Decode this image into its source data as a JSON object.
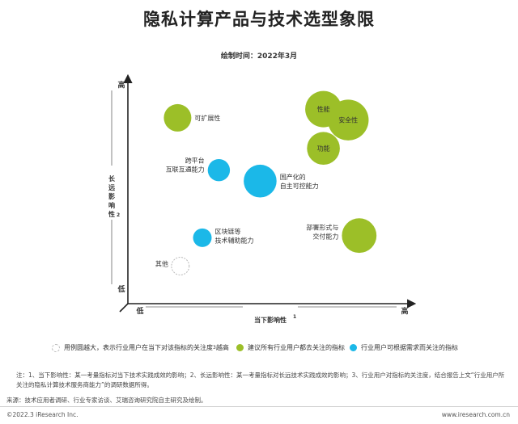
{
  "title": "隐私计算产品与技术选型象限",
  "date_label": "绘制时间：2022年3月",
  "chart_data": {
    "type": "scatter",
    "title": "隐私计算产品与技术选型象限",
    "xlabel": "当下影响性",
    "xlabel_sup": "1",
    "ylabel": "长远影响性",
    "ylabel_sup": "2",
    "x_low": "低",
    "x_high": "高",
    "y_low": "低",
    "y_high": "高",
    "xlim": [
      0,
      10
    ],
    "ylim": [
      0,
      10
    ],
    "grid": false,
    "legend_position": "bottom",
    "colors": {
      "green": "#9cbf28",
      "blue": "#1bb8e8",
      "outline": "#b8b8b8"
    },
    "points": [
      {
        "label": "可扩展性",
        "x": 1.6,
        "y": 8.3,
        "size": 2,
        "group": "green"
      },
      {
        "label": "性能",
        "x": 6.9,
        "y": 8.7,
        "size": 3,
        "group": "green"
      },
      {
        "label": "安全性",
        "x": 7.8,
        "y": 8.2,
        "size": 3.5,
        "group": "green"
      },
      {
        "label": "功能",
        "x": 6.9,
        "y": 6.9,
        "size": 2.6,
        "group": "green"
      },
      {
        "label": "跨平台\n互联互通能力",
        "x": 3.1,
        "y": 5.9,
        "size": 1.4,
        "group": "blue"
      },
      {
        "label": "国产化的\n自主可控能力",
        "x": 4.6,
        "y": 5.4,
        "size": 2.6,
        "group": "blue"
      },
      {
        "label": "部署形式与\n交付能力",
        "x": 8.2,
        "y": 2.9,
        "size": 2.8,
        "group": "green"
      },
      {
        "label": "区块链等\n技术辅助能力",
        "x": 2.5,
        "y": 2.8,
        "size": 1.0,
        "group": "blue"
      },
      {
        "label": "其他",
        "x": 1.7,
        "y": 1.5,
        "size": 0.9,
        "group": "outline"
      }
    ]
  },
  "legend": [
    {
      "text": "用例圆越大，表示行业用户在当下对该指标的关注度",
      "sup": "3",
      "suffix": "越高",
      "color": "#ffffff",
      "border": "#b8b8b8"
    },
    {
      "text": "建议所有行业用户都去关注的指标",
      "sup": "",
      "suffix": "",
      "color": "#9cbf28",
      "border": "#9cbf28"
    },
    {
      "text": "行业用户可根据需求而关注的指标",
      "sup": "",
      "suffix": "",
      "color": "#1bb8e8",
      "border": "#1bb8e8"
    }
  ],
  "notes": "注：1、当下影响性：某一考量指标对当下技术实践成效的影响；2、长远影响性：某一考量指标对长远技术实践成效的影响；3、行业用户对指标的关注度，结合报告上文“行业用户所关注的隐私计算技术服务商能力”的调研数据所得。",
  "source": "来源：技术应用者调研、行业专家访谈、艾瑞咨询研究院自主研究及绘制。",
  "copyright": "©2022.3 iResearch Inc.",
  "website": "www.iresearch.com.cn"
}
